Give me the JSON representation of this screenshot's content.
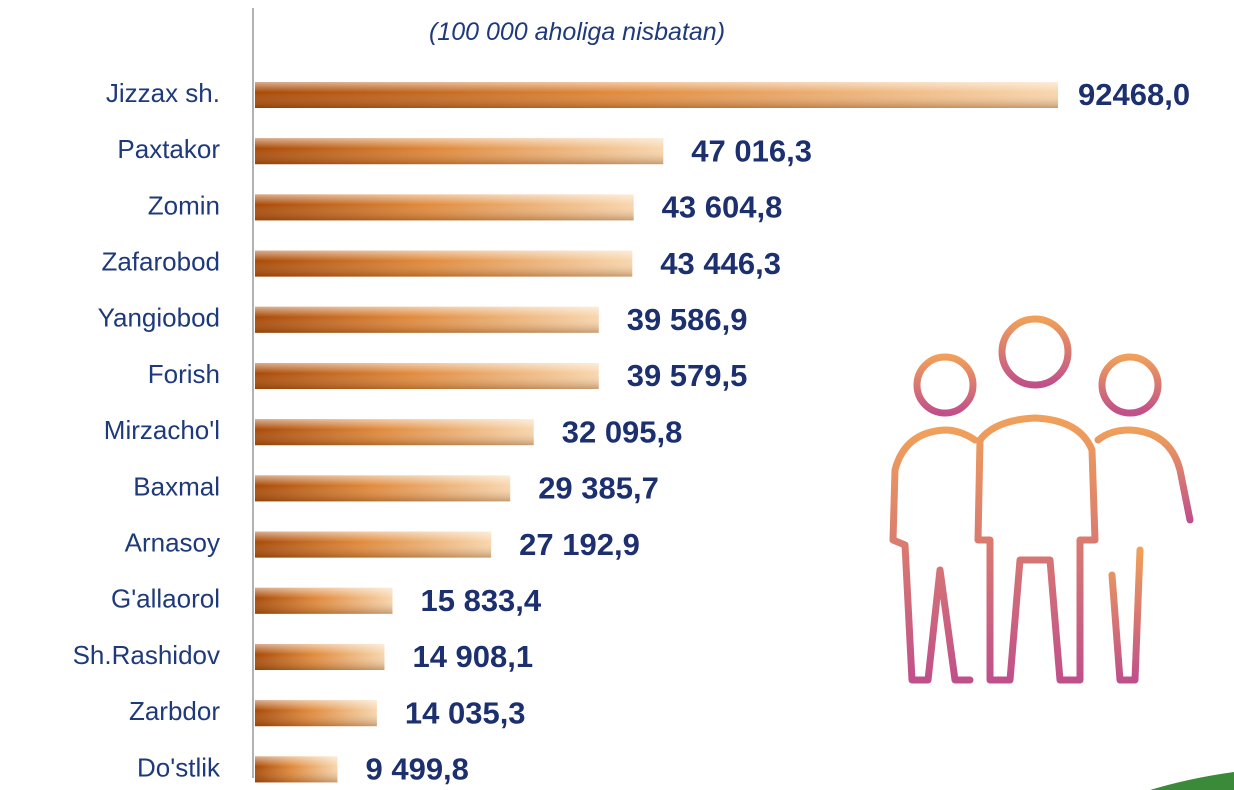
{
  "chart_data": {
    "type": "barh",
    "subtitle": "(100 000 aholiga nisbatan)",
    "categories": [
      "Jizzax sh.",
      "Paxtakor",
      "Zomin",
      "Zafarobod",
      "Yangiobod",
      "Forish",
      "Mirzacho'l",
      "Baxmal",
      "Arnasoy",
      "G'allaorol",
      "Sh.Rashidov",
      "Zarbdor",
      "Do'stlik"
    ],
    "values": [
      92468.0,
      47016.3,
      43604.8,
      43446.3,
      39586.9,
      39579.5,
      32095.8,
      29385.7,
      27192.9,
      15833.4,
      14908.1,
      14035.3,
      9499.8
    ],
    "value_labels": [
      "92468,0",
      "47 016,3",
      "43 604,8",
      "43 446,3",
      "39 586,9",
      "39 579,5",
      "32 095,8",
      "29 385,7",
      "27 192,9",
      "15 833,4",
      "14 908,1",
      "14 035,3",
      "9 499,8"
    ],
    "color": "#d9742a"
  }
}
